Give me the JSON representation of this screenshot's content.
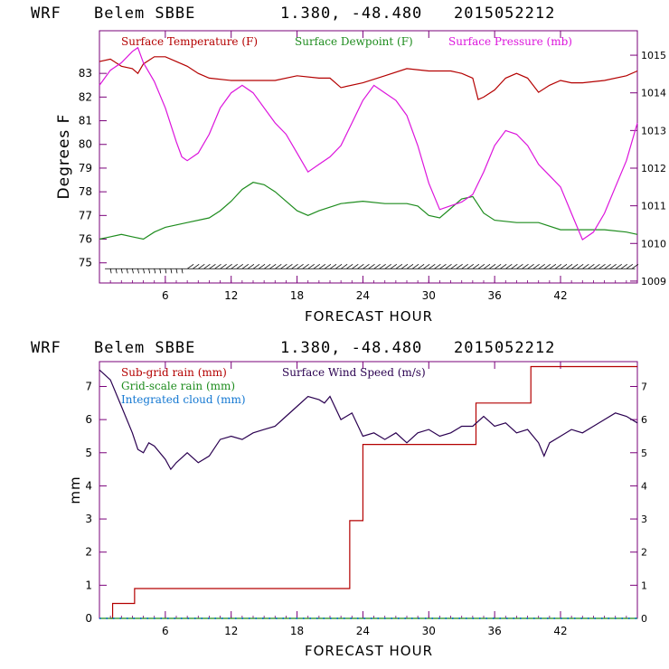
{
  "chart_data": [
    {
      "type": "line",
      "header": {
        "model": "WRF",
        "station": "Belem SBBE",
        "coords": "1.380, -48.480",
        "init": "2015052212"
      },
      "xlabel": "FORECAST HOUR",
      "ylabel": "Degrees F",
      "xlim": [
        0,
        49
      ],
      "xticks": [
        6,
        12,
        18,
        24,
        30,
        36,
        42
      ],
      "ylim_left": [
        74.15,
        84.8
      ],
      "yticks_left": [
        75,
        76,
        77,
        78,
        79,
        80,
        81,
        82,
        83
      ],
      "ylim_right": [
        1008.95,
        1015.65
      ],
      "yticks_right": [
        1009,
        1010,
        1011,
        1012,
        1013,
        1014,
        1015
      ],
      "colors": {
        "temp": "#b40000",
        "dew": "#1e8c1e",
        "pres": "#dc14dc",
        "wind": "#000000",
        "axis": "#7a007a"
      },
      "series": [
        {
          "name": "Surface Temperature (F)",
          "axis": "left",
          "color": "#b40000",
          "x": [
            0,
            1,
            2,
            3,
            3.5,
            4,
            5,
            6,
            7,
            8,
            9,
            10,
            12,
            14,
            16,
            18,
            20,
            21,
            22,
            24,
            26,
            28,
            30,
            32,
            33,
            34,
            34.5,
            35,
            36,
            37,
            38,
            39,
            40,
            41,
            42,
            43,
            44,
            46,
            48,
            49
          ],
          "y": [
            83.5,
            83.6,
            83.3,
            83.2,
            83.0,
            83.4,
            83.7,
            83.7,
            83.5,
            83.3,
            83.0,
            82.8,
            82.7,
            82.7,
            82.7,
            82.9,
            82.8,
            82.8,
            82.4,
            82.6,
            82.9,
            83.2,
            83.1,
            83.1,
            83.0,
            82.8,
            81.9,
            82.0,
            82.3,
            82.8,
            83.0,
            82.8,
            82.2,
            82.5,
            82.7,
            82.6,
            82.6,
            82.7,
            82.9,
            83.1
          ]
        },
        {
          "name": "Surface Dewpoint (F)",
          "axis": "left",
          "color": "#1e8c1e",
          "x": [
            0,
            1,
            2,
            3,
            4,
            5,
            6,
            8,
            10,
            11,
            12,
            13,
            14,
            15,
            16,
            17,
            18,
            19,
            20,
            22,
            24,
            26,
            28,
            29,
            30,
            31,
            32,
            33,
            34,
            35,
            36,
            38,
            40,
            42,
            44,
            46,
            48,
            49
          ],
          "y": [
            76.0,
            76.1,
            76.2,
            76.1,
            76.0,
            76.3,
            76.5,
            76.7,
            76.9,
            77.2,
            77.6,
            78.1,
            78.4,
            78.3,
            78.0,
            77.6,
            77.2,
            77.0,
            77.2,
            77.5,
            77.6,
            77.5,
            77.5,
            77.4,
            77.0,
            76.9,
            77.3,
            77.7,
            77.8,
            77.1,
            76.8,
            76.7,
            76.7,
            76.4,
            76.4,
            76.4,
            76.3,
            76.2
          ]
        },
        {
          "name": "Surface Pressure (mb)",
          "axis": "right",
          "color": "#dc14dc",
          "x": [
            0,
            1,
            2,
            3,
            3.5,
            4,
            5,
            6,
            7,
            7.5,
            8,
            9,
            10,
            11,
            12,
            13,
            14,
            16,
            17,
            18,
            19,
            20,
            21,
            22,
            23,
            24,
            25,
            26,
            27,
            28,
            29,
            30,
            31,
            32,
            33,
            34,
            35,
            36,
            37,
            38,
            39,
            40,
            41,
            42,
            43,
            44,
            45,
            46,
            47,
            48,
            49
          ],
          "y": [
            1014.2,
            1014.6,
            1014.8,
            1015.1,
            1015.2,
            1014.8,
            1014.3,
            1013.6,
            1012.7,
            1012.3,
            1012.2,
            1012.4,
            1012.9,
            1013.6,
            1014.0,
            1014.2,
            1014.0,
            1013.2,
            1012.9,
            1012.4,
            1011.9,
            1012.1,
            1012.3,
            1012.6,
            1013.2,
            1013.8,
            1014.2,
            1014.0,
            1013.8,
            1013.4,
            1012.6,
            1011.6,
            1010.9,
            1011.0,
            1011.1,
            1011.3,
            1011.9,
            1012.6,
            1013.0,
            1012.9,
            1012.6,
            1012.1,
            1011.8,
            1011.5,
            1010.8,
            1010.1,
            1010.3,
            1010.8,
            1011.5,
            1012.2,
            1013.2
          ]
        }
      ],
      "wind_barbs": true
    },
    {
      "type": "line",
      "header": {
        "model": "WRF",
        "station": "Belem SBBE",
        "coords": "1.380, -48.480",
        "init": "2015052212"
      },
      "xlabel": "FORECAST HOUR",
      "ylabel": "mm",
      "xlim": [
        0,
        49
      ],
      "xticks": [
        6,
        12,
        18,
        24,
        30,
        36,
        42
      ],
      "ylim_left": [
        0,
        7.75
      ],
      "yticks_left": [
        0,
        1,
        2,
        3,
        4,
        5,
        6,
        7
      ],
      "ylim_right": [
        0,
        7.75
      ],
      "yticks_right": [
        0,
        1,
        2,
        3,
        4,
        5,
        6,
        7
      ],
      "series": [
        {
          "name": "Sub-grid rain (mm)",
          "axis": "left",
          "color": "#b40000",
          "step": true,
          "x": [
            1,
            1.2,
            3.2,
            21.3,
            22.8,
            24.0,
            34.3,
            39.3,
            49
          ],
          "y": [
            0,
            0.45,
            0.9,
            0.9,
            2.95,
            5.25,
            6.5,
            7.6,
            7.6
          ]
        },
        {
          "name": "Grid-scale rain (mm)",
          "axis": "left",
          "color": "#1e8c1e",
          "x": [
            0,
            49
          ],
          "y": [
            0,
            0
          ]
        },
        {
          "name": "Integrated cloud (mm)",
          "axis": "left",
          "color": "#1478d2",
          "x": [
            0,
            49
          ],
          "y": [
            0,
            0
          ]
        },
        {
          "name": "Surface Wind Speed (m/s)",
          "axis": "right",
          "color": "#2a0050",
          "x": [
            0,
            1,
            2,
            3,
            3.5,
            4,
            4.5,
            5,
            6,
            6.5,
            7,
            8,
            9,
            10,
            11,
            12,
            13,
            14,
            15,
            16,
            17,
            18,
            19,
            20,
            20.5,
            21,
            22,
            23,
            24,
            25,
            26,
            27,
            28,
            29,
            30,
            31,
            32,
            33,
            34,
            35,
            36,
            37,
            38,
            39,
            40,
            40.5,
            41,
            42,
            43,
            44,
            45,
            46,
            47,
            48,
            49
          ],
          "y": [
            7.5,
            7.2,
            6.4,
            5.6,
            5.1,
            5.0,
            5.3,
            5.2,
            4.8,
            4.5,
            4.7,
            5.0,
            4.7,
            4.9,
            5.4,
            5.5,
            5.4,
            5.6,
            5.7,
            5.8,
            6.1,
            6.4,
            6.7,
            6.6,
            6.5,
            6.7,
            6.0,
            6.2,
            5.5,
            5.6,
            5.4,
            5.6,
            5.3,
            5.6,
            5.7,
            5.5,
            5.6,
            5.8,
            5.8,
            6.1,
            5.8,
            5.9,
            5.6,
            5.7,
            5.3,
            4.9,
            5.3,
            5.5,
            5.7,
            5.6,
            5.8,
            6.0,
            6.2,
            6.1,
            5.9
          ]
        }
      ]
    }
  ]
}
